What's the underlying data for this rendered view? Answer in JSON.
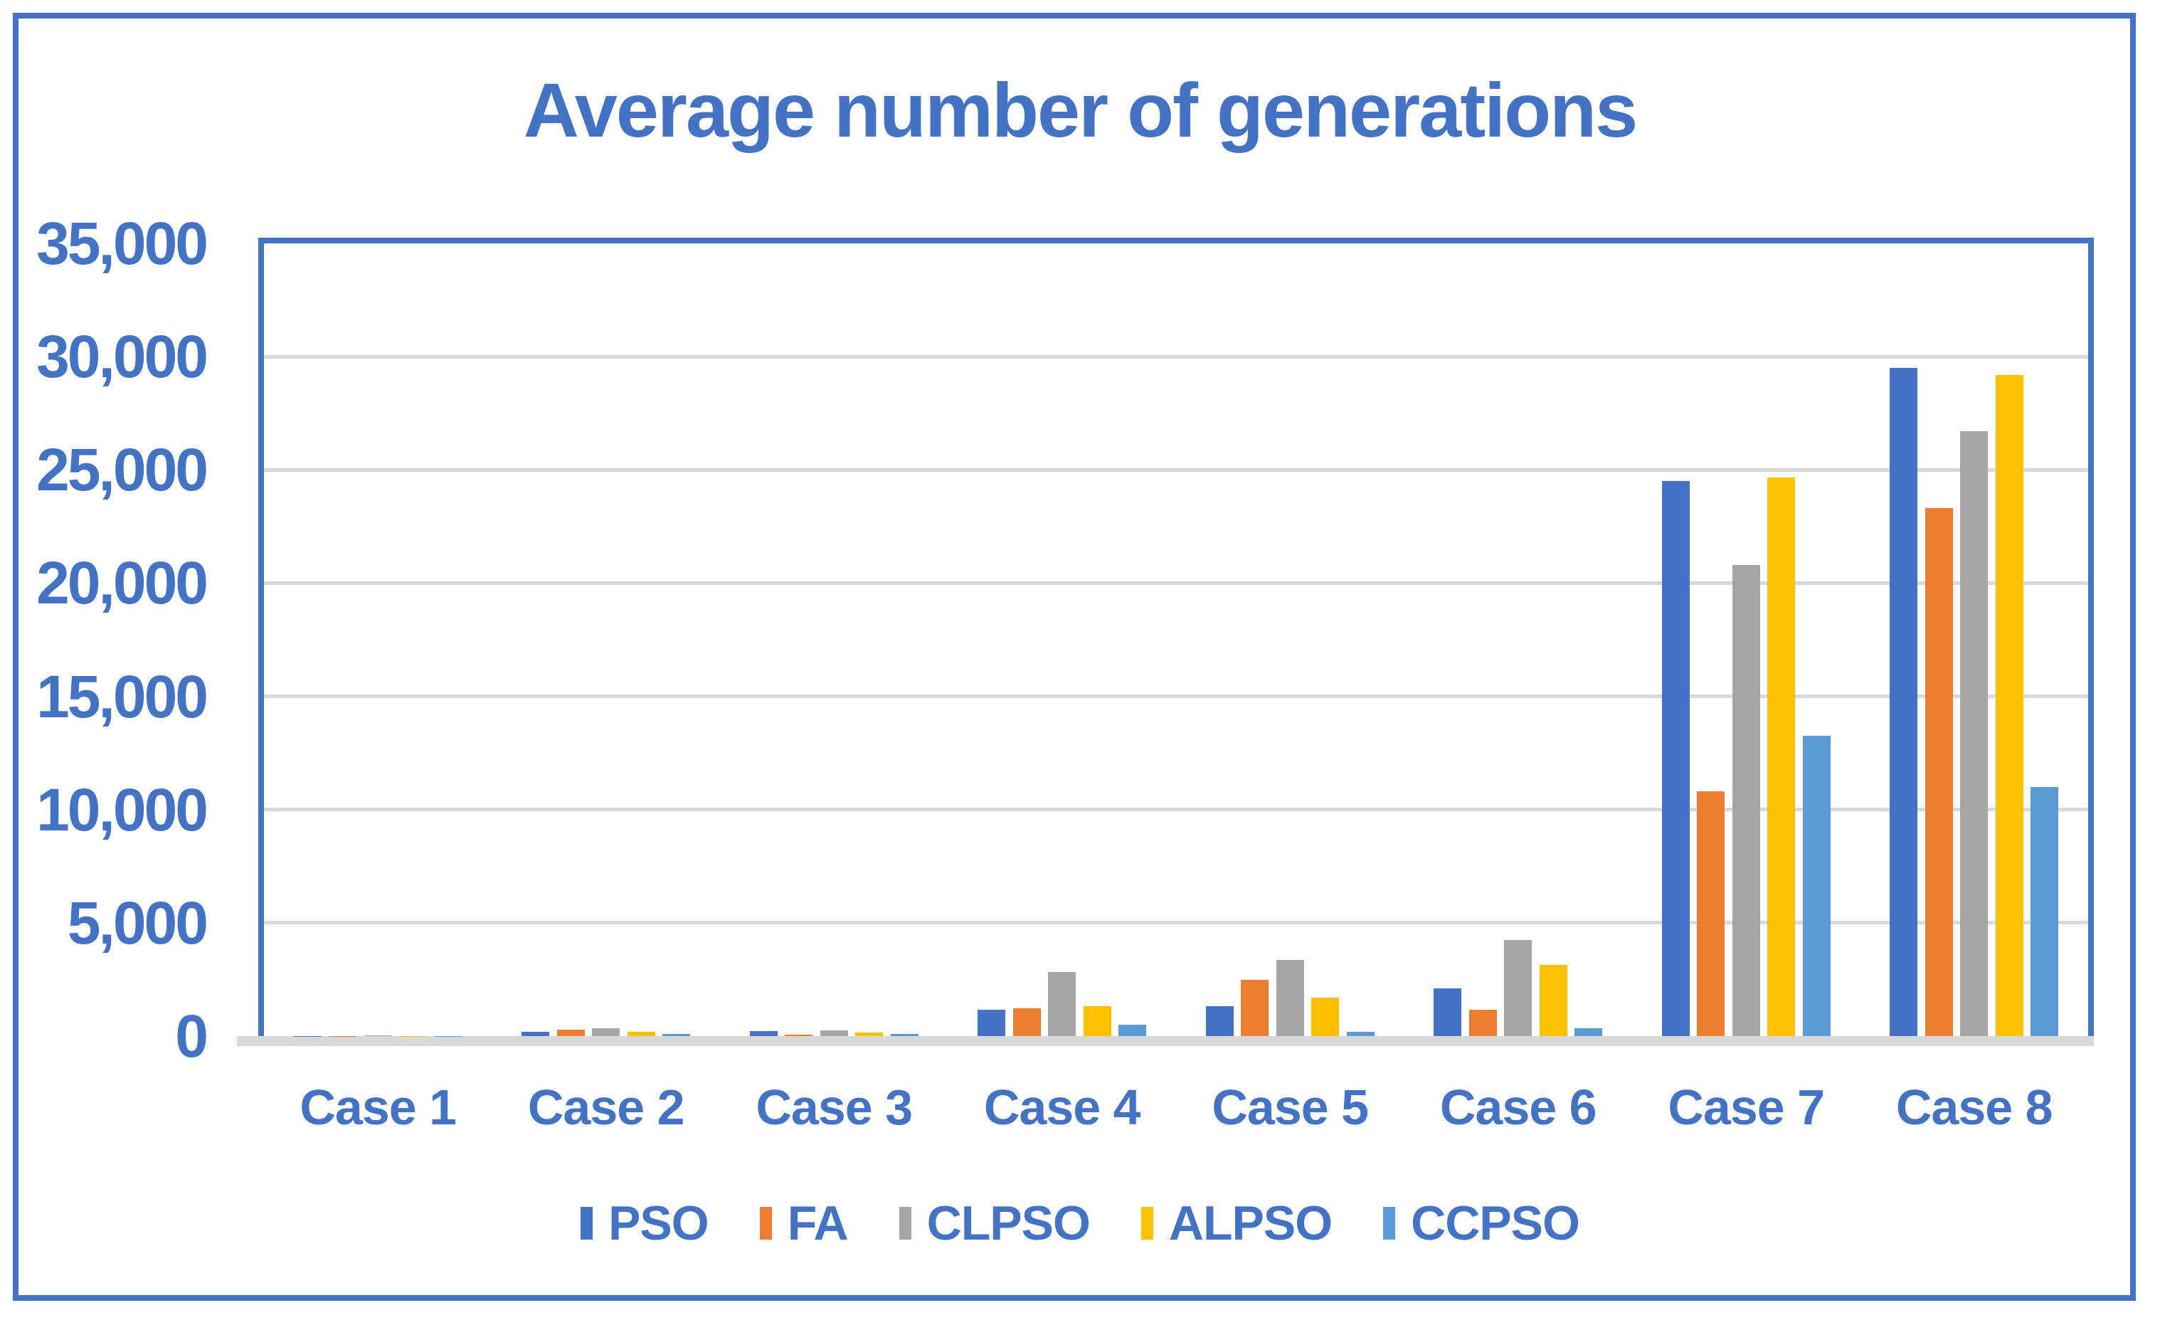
{
  "chart_data": {
    "type": "bar",
    "title": "Average number of generations",
    "categories": [
      "Case 1",
      "Case 2",
      "Case 3",
      "Case 4",
      "Case 5",
      "Case 6",
      "Case 7",
      "Case 8"
    ],
    "series": [
      {
        "name": "PSO",
        "color": "#4472C4",
        "values": [
          15,
          180,
          220,
          1150,
          1330,
          2100,
          24500,
          29500
        ]
      },
      {
        "name": "FA",
        "color": "#ED7D31",
        "values": [
          10,
          290,
          60,
          1220,
          2480,
          1150,
          10800,
          23300
        ]
      },
      {
        "name": "CLPSO",
        "color": "#A5A5A5",
        "values": [
          20,
          340,
          250,
          2840,
          3360,
          4250,
          20800,
          26700
        ]
      },
      {
        "name": "ALPSO",
        "color": "#FFC000",
        "values": [
          10,
          200,
          150,
          1310,
          1690,
          3150,
          24650,
          29200
        ]
      },
      {
        "name": "CCPSO",
        "color": "#5B9BD5",
        "values": [
          8,
          100,
          100,
          500,
          200,
          350,
          13250,
          11000
        ]
      }
    ],
    "ylim": [
      0,
      35000
    ],
    "ytick_step": 5000,
    "ytick_labels": [
      "35,000",
      "30,000",
      "25,000",
      "20,000",
      "15,000",
      "10,000",
      "5,000",
      "0"
    ],
    "xlabel": "",
    "ylabel": "",
    "grid": true,
    "legend_position": "bottom"
  },
  "styles": {
    "accent_blue": "#4472C4",
    "gridline_gray": "#D9D9D9",
    "background": "#ffffff"
  }
}
